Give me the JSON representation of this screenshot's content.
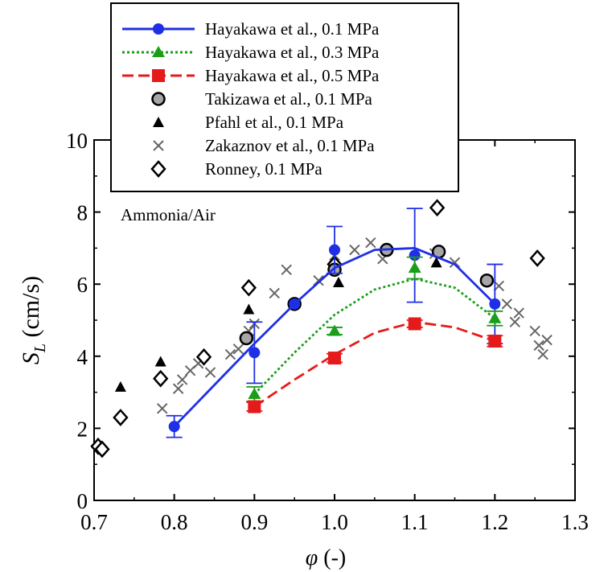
{
  "chart_data": {
    "type": "scatter",
    "title": "",
    "annotation": "Ammonia/Air",
    "xlabel": "φ (-)",
    "ylabel_main": "S",
    "ylabel_sub": "L",
    "ylabel_unit": " (cm/s)",
    "xlim": [
      0.7,
      1.3
    ],
    "ylim": [
      0,
      10
    ],
    "xticks": [
      0.7,
      0.8,
      0.9,
      1.0,
      1.1,
      1.2,
      1.3
    ],
    "xtick_labels": [
      "0.7",
      "0.8",
      "0.9",
      "1.0",
      "1.1",
      "1.2",
      "1.3"
    ],
    "yticks": [
      0,
      2,
      4,
      6,
      8,
      10
    ],
    "ytick_labels": [
      "0",
      "2",
      "4",
      "6",
      "8",
      "10"
    ],
    "legend_position": "top-center",
    "series": [
      {
        "name": "Hayakawa et al., 0.1 MPa",
        "marker": "filled-circle",
        "color": "#1f2fe6",
        "line": "solid",
        "x": [
          0.8,
          0.9,
          0.95,
          1.0,
          1.1,
          1.2
        ],
        "y": [
          2.05,
          4.1,
          5.45,
          6.95,
          6.8,
          5.45
        ],
        "err": [
          0.3,
          0.85,
          0,
          0.65,
          1.3,
          1.1
        ],
        "fit_x": [
          0.8,
          0.85,
          0.9,
          0.95,
          1.0,
          1.05,
          1.1,
          1.15,
          1.2
        ],
        "fit_y": [
          2.05,
          3.2,
          4.35,
          5.45,
          6.45,
          6.95,
          7.0,
          6.55,
          5.45
        ]
      },
      {
        "name": "Hayakawa et al., 0.3 MPa",
        "marker": "filled-triangle",
        "color": "#1a9e1a",
        "line": "dotted",
        "x": [
          0.9,
          1.0,
          1.1,
          1.2
        ],
        "y": [
          2.95,
          4.7,
          6.45,
          5.05
        ],
        "err": [
          0.2,
          0.1,
          0.3,
          0.2
        ],
        "fit_x": [
          0.9,
          0.95,
          1.0,
          1.05,
          1.1,
          1.15,
          1.2
        ],
        "fit_y": [
          2.95,
          4.1,
          5.15,
          5.85,
          6.15,
          5.9,
          5.05
        ]
      },
      {
        "name": "Hayakawa et al., 0.5 MPa",
        "marker": "filled-square",
        "color": "#e51b1b",
        "line": "dashed",
        "x": [
          0.9,
          1.0,
          1.1,
          1.2
        ],
        "y": [
          2.6,
          3.95,
          4.9,
          4.42
        ],
        "err": [
          0.12,
          0.12,
          0.1,
          0.15
        ],
        "fit_x": [
          0.9,
          0.95,
          1.0,
          1.05,
          1.1,
          1.15,
          1.2
        ],
        "fit_y": [
          2.6,
          3.35,
          4.05,
          4.65,
          4.95,
          4.8,
          4.42
        ]
      },
      {
        "name": "Takizawa et al., 0.1 MPa",
        "marker": "grey-circle",
        "color": "#a6a6a6",
        "x": [
          0.89,
          0.95,
          1.0,
          1.065,
          1.13,
          1.19
        ],
        "y": [
          4.5,
          5.45,
          6.4,
          6.95,
          6.9,
          6.1
        ]
      },
      {
        "name": "Pfahl et al., 0.1 MPa",
        "marker": "black-triangle",
        "color": "#000000",
        "x": [
          0.733,
          0.783,
          0.893,
          1.005,
          1.127
        ],
        "y": [
          3.15,
          3.85,
          5.3,
          6.05,
          6.6
        ]
      },
      {
        "name": "Zakaznov et al., 0.1 MPa",
        "marker": "x",
        "color": "#666666",
        "x": [
          0.785,
          0.805,
          0.81,
          0.82,
          0.83,
          0.845,
          0.87,
          0.88,
          0.893,
          0.9,
          0.925,
          0.94,
          0.98,
          1.0,
          1.025,
          1.045,
          1.06,
          1.125,
          1.15,
          1.205,
          1.215,
          1.225,
          1.23,
          1.25,
          1.255,
          1.26,
          1.265
        ],
        "y": [
          2.55,
          3.1,
          3.35,
          3.6,
          3.8,
          3.55,
          4.05,
          4.2,
          4.7,
          4.9,
          5.75,
          6.4,
          6.1,
          6.8,
          6.95,
          7.15,
          6.7,
          6.85,
          6.6,
          5.95,
          5.45,
          4.95,
          5.2,
          4.7,
          4.3,
          4.05,
          4.45
        ]
      },
      {
        "name": "Ronney, 0.1 MPa",
        "marker": "open-diamond",
        "color": "#000000",
        "x": [
          0.705,
          0.71,
          0.733,
          0.783,
          0.837,
          0.893,
          1.0,
          1.128,
          1.253
        ],
        "y": [
          1.5,
          1.42,
          2.3,
          3.38,
          3.98,
          5.9,
          6.55,
          8.12,
          6.72
        ]
      }
    ]
  }
}
